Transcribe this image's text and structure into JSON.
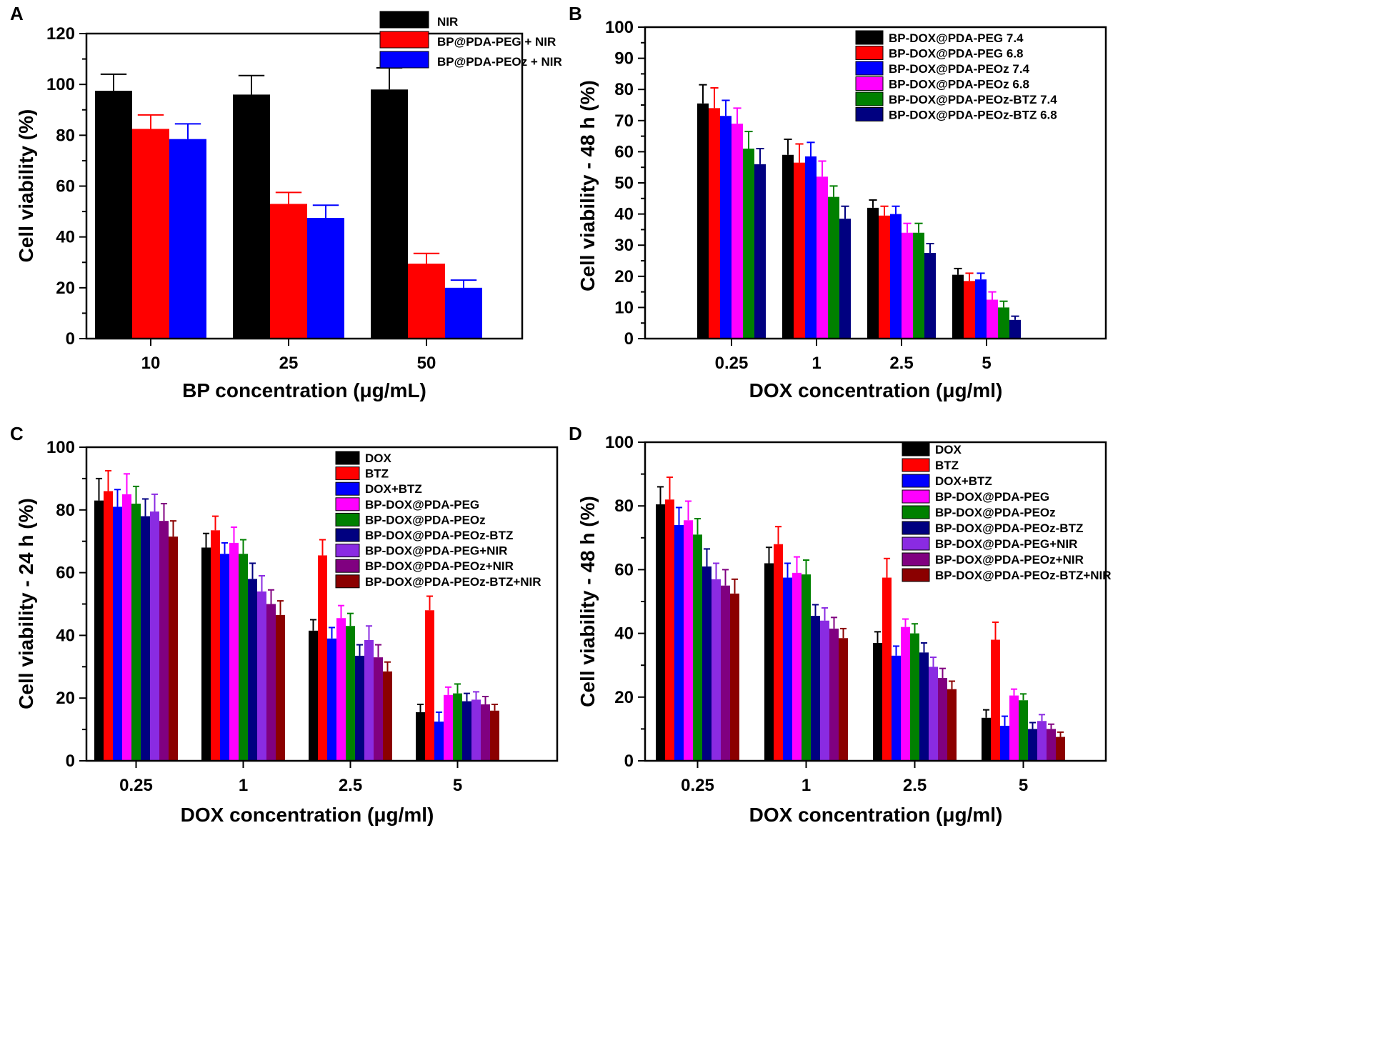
{
  "chart_data": [
    {
      "panel": "A",
      "type": "bar",
      "xlabel": "BP concentration (μg/mL)",
      "ylabel": "Cell viability (%)",
      "ylim": [
        0,
        120
      ],
      "yticks": [
        0,
        20,
        40,
        60,
        80,
        100,
        120
      ],
      "categories": [
        "10",
        "25",
        "50"
      ],
      "series": [
        {
          "name": "NIR",
          "color": "#000000",
          "values": [
            97.5,
            96,
            98
          ],
          "errors": [
            6.5,
            7.5,
            8.5
          ]
        },
        {
          "name": "BP@PDA-PEG + NIR",
          "color": "#ff0000",
          "values": [
            82.5,
            53,
            29.5
          ],
          "errors": [
            5.5,
            4.5,
            4
          ]
        },
        {
          "name": "BP@PDA-PEOz + NIR",
          "color": "#0000ff",
          "values": [
            78.5,
            47.5,
            20
          ],
          "errors": [
            6,
            5,
            3
          ]
        }
      ],
      "legend_position": "top-right"
    },
    {
      "panel": "B",
      "type": "bar",
      "xlabel": "DOX concentration (μg/ml)",
      "ylabel": "Cell viability - 48 h (%)",
      "ylim": [
        0,
        100
      ],
      "yticks": [
        0,
        10,
        20,
        30,
        40,
        50,
        60,
        70,
        80,
        90,
        100
      ],
      "categories": [
        "0.25",
        "1",
        "2.5",
        "5"
      ],
      "series": [
        {
          "name": "BP-DOX@PDA-PEG 7.4",
          "color": "#000000",
          "values": [
            75.5,
            59,
            42,
            20.5
          ],
          "errors": [
            6,
            5,
            2.5,
            2
          ]
        },
        {
          "name": "BP-DOX@PDA-PEG 6.8",
          "color": "#ff0000",
          "values": [
            74,
            56.5,
            39.5,
            18.5
          ],
          "errors": [
            6.5,
            6,
            3,
            2.5
          ]
        },
        {
          "name": "BP-DOX@PDA-PEOz 7.4",
          "color": "#0000ff",
          "values": [
            71.5,
            58.5,
            40,
            19
          ],
          "errors": [
            5,
            4.5,
            2.5,
            2
          ]
        },
        {
          "name": "BP-DOX@PDA-PEOz 6.8",
          "color": "#ff00ff",
          "values": [
            69,
            52,
            34,
            12.5
          ],
          "errors": [
            5,
            5,
            3,
            2.5
          ]
        },
        {
          "name": "BP-DOX@PDA-PEOz-BTZ 7.4",
          "color": "#008000",
          "values": [
            61,
            45.5,
            34,
            10
          ],
          "errors": [
            5.5,
            3.5,
            3,
            2
          ]
        },
        {
          "name": "BP-DOX@PDA-PEOz-BTZ 6.8",
          "color": "#000080",
          "values": [
            56,
            38.5,
            27.5,
            6
          ],
          "errors": [
            5,
            4,
            3,
            1.2
          ]
        }
      ],
      "legend_position": "top-right"
    },
    {
      "panel": "C",
      "type": "bar",
      "xlabel": "DOX concentration (μg/ml)",
      "ylabel": "Cell viability - 24 h (%)",
      "ylim": [
        0,
        100
      ],
      "yticks": [
        0,
        20,
        40,
        60,
        80,
        100
      ],
      "categories": [
        "0.25",
        "1",
        "2.5",
        "5"
      ],
      "series": [
        {
          "name": "DOX",
          "color": "#000000",
          "values": [
            83,
            68,
            41.5,
            15.5
          ],
          "errors": [
            7,
            4.5,
            3.5,
            2.5
          ]
        },
        {
          "name": "BTZ",
          "color": "#ff0000",
          "values": [
            86,
            73.5,
            65.5,
            48
          ],
          "errors": [
            6.5,
            4.5,
            5,
            4.5
          ]
        },
        {
          "name": "DOX+BTZ",
          "color": "#0000ff",
          "values": [
            81,
            66,
            39,
            12.5
          ],
          "errors": [
            5.5,
            3.5,
            3.5,
            3
          ]
        },
        {
          "name": "BP-DOX@PDA-PEG",
          "color": "#ff00ff",
          "values": [
            85,
            69.5,
            45.5,
            21
          ],
          "errors": [
            6.5,
            5,
            4,
            2.5
          ]
        },
        {
          "name": "BP-DOX@PDA-PEOz",
          "color": "#008000",
          "values": [
            82,
            66,
            43,
            21.5
          ],
          "errors": [
            5.5,
            4.5,
            4,
            3
          ]
        },
        {
          "name": "BP-DOX@PDA-PEOz-BTZ",
          "color": "#000080",
          "values": [
            78,
            58,
            33.5,
            19
          ],
          "errors": [
            5.5,
            5,
            3.5,
            2.5
          ]
        },
        {
          "name": "BP-DOX@PDA-PEG+NIR",
          "color": "#8a2be2",
          "values": [
            79.5,
            54,
            38.5,
            19.5
          ],
          "errors": [
            5.5,
            5,
            4.5,
            2.5
          ]
        },
        {
          "name": "BP-DOX@PDA-PEOz+NIR",
          "color": "#800080",
          "values": [
            76.5,
            50,
            33,
            18
          ],
          "errors": [
            5.5,
            4.5,
            4,
            2.5
          ]
        },
        {
          "name": "BP-DOX@PDA-PEOz-BTZ+NIR",
          "color": "#8b0000",
          "values": [
            71.5,
            46.5,
            28.5,
            16
          ],
          "errors": [
            5,
            4.5,
            3,
            2
          ]
        }
      ],
      "legend_position": "top-right"
    },
    {
      "panel": "D",
      "type": "bar",
      "xlabel": "DOX concentration (μg/ml)",
      "ylabel": "Cell viability - 48 h (%)",
      "ylim": [
        0,
        100
      ],
      "yticks": [
        0,
        20,
        40,
        60,
        80,
        100
      ],
      "categories": [
        "0.25",
        "1",
        "2.5",
        "5"
      ],
      "series": [
        {
          "name": "DOX",
          "color": "#000000",
          "values": [
            80.5,
            62,
            37,
            13.5
          ],
          "errors": [
            5.5,
            5,
            3.5,
            2.5
          ]
        },
        {
          "name": "BTZ",
          "color": "#ff0000",
          "values": [
            82,
            68,
            57.5,
            38
          ],
          "errors": [
            7,
            5.5,
            6,
            5.5
          ]
        },
        {
          "name": "DOX+BTZ",
          "color": "#0000ff",
          "values": [
            74,
            57.5,
            33,
            11
          ],
          "errors": [
            5.5,
            4.5,
            3,
            3
          ]
        },
        {
          "name": "BP-DOX@PDA-PEG",
          "color": "#ff00ff",
          "values": [
            75.5,
            59,
            42,
            20.5
          ],
          "errors": [
            6,
            5,
            2.5,
            2
          ]
        },
        {
          "name": "BP-DOX@PDA-PEOz",
          "color": "#008000",
          "values": [
            71,
            58.5,
            40,
            19
          ],
          "errors": [
            5,
            4.5,
            3,
            2
          ]
        },
        {
          "name": "BP-DOX@PDA-PEOz-BTZ",
          "color": "#000080",
          "values": [
            61,
            45.5,
            34,
            10
          ],
          "errors": [
            5.5,
            3.5,
            3,
            2
          ]
        },
        {
          "name": "BP-DOX@PDA-PEG+NIR",
          "color": "#8a2be2",
          "values": [
            57,
            44,
            29.5,
            12.5
          ],
          "errors": [
            5,
            4,
            3,
            2
          ]
        },
        {
          "name": "BP-DOX@PDA-PEOz+NIR",
          "color": "#800080",
          "values": [
            55,
            41.5,
            26,
            10
          ],
          "errors": [
            5,
            3.5,
            3,
            1.5
          ]
        },
        {
          "name": "BP-DOX@PDA-PEOz-BTZ+NIR",
          "color": "#8b0000",
          "values": [
            52.5,
            38.5,
            22.5,
            7.5
          ],
          "errors": [
            4.5,
            3,
            2.5,
            1.5
          ]
        }
      ],
      "legend_position": "top-right"
    }
  ]
}
